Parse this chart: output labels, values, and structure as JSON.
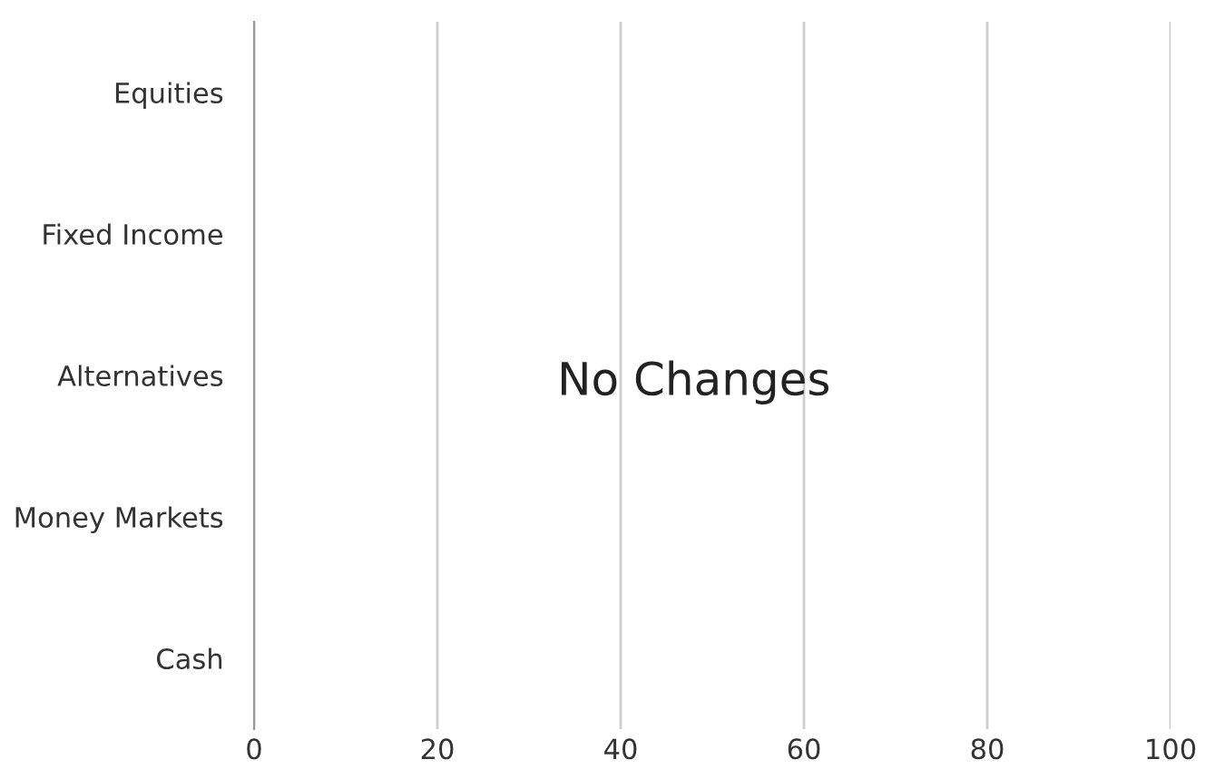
{
  "chart_data": {
    "type": "bar",
    "orientation": "horizontal",
    "categories": [
      "Equities",
      "Fixed Income",
      "Alternatives",
      "Money Markets",
      "Cash"
    ],
    "values": [
      0,
      0,
      0,
      0,
      0
    ],
    "xlim": [
      0,
      100
    ],
    "xticks": [
      0,
      20,
      40,
      60,
      80,
      100
    ],
    "grid": "x",
    "annotations": [
      "No Changes"
    ]
  }
}
